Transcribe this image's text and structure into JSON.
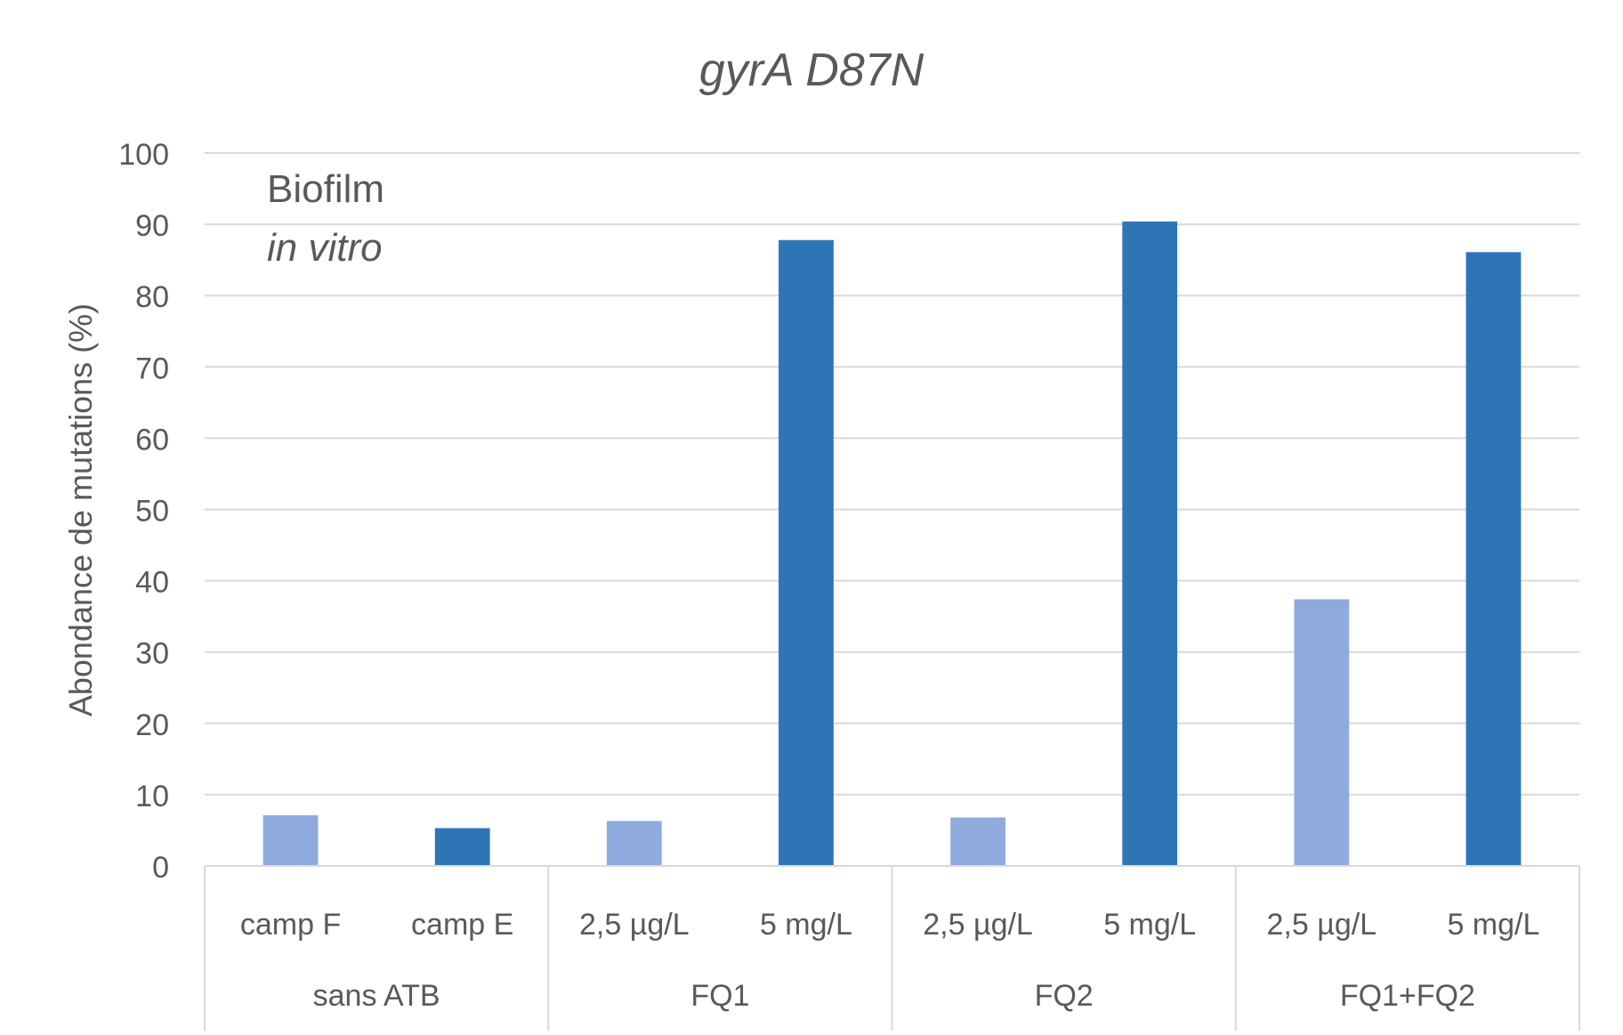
{
  "chart_data": {
    "type": "bar",
    "title": "gyrA D87N",
    "annotation": {
      "line1": "Biofilm",
      "line2": "in vitro"
    },
    "ylabel": "Abondance de mutations (%)",
    "xlabel": "",
    "ylim": [
      0,
      100
    ],
    "yticks": [
      0,
      10,
      20,
      30,
      40,
      50,
      60,
      70,
      80,
      90,
      100
    ],
    "grid": true,
    "groups": [
      {
        "name": "sans ATB",
        "categories": [
          "camp F",
          "camp E"
        ]
      },
      {
        "name": "FQ1",
        "categories": [
          "2,5 µg/L",
          "5 mg/L"
        ]
      },
      {
        "name": "FQ2",
        "categories": [
          "2,5 µg/L",
          "5 mg/L"
        ]
      },
      {
        "name": "FQ1+FQ2",
        "categories": [
          "2,5 µg/L",
          "5 mg/L"
        ]
      }
    ],
    "values": [
      7.1,
      5.3,
      6.3,
      87.8,
      6.8,
      90.4,
      37.4,
      86.1
    ],
    "bar_color_keys": [
      "light",
      "dark",
      "light",
      "dark",
      "light",
      "dark",
      "light",
      "dark"
    ],
    "colors": {
      "light": "#8faadc",
      "dark": "#2e75b6",
      "grid": "#d9d9d9",
      "text": "#595959"
    }
  }
}
